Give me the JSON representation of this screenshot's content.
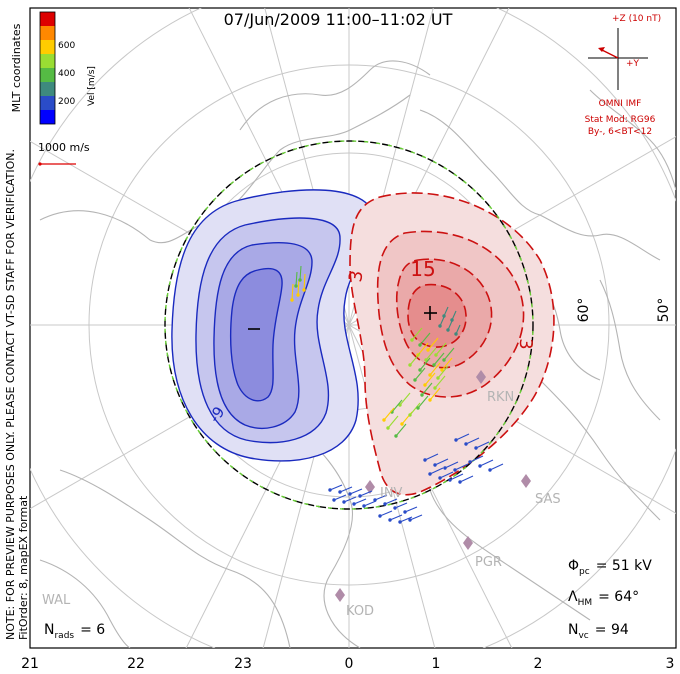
{
  "title": "07/Jun/2009 11:00–11:02 UT",
  "coords_label": "MLT coordinates",
  "colorbar": {
    "label": "Vel [m/s]",
    "ticks": [
      "600",
      "400",
      "200"
    ],
    "colors": [
      "#0000ff",
      "#2a4cc8",
      "#3e8a7e",
      "#55bb44",
      "#99dd33",
      "#ffcc00",
      "#ff8800",
      "#ff3300",
      "#dd0000"
    ]
  },
  "ref_vector": "1000 m/s",
  "imf": {
    "z_label": "+Z (10 nT)",
    "y_label": "+Y",
    "source": "OMNI IMF",
    "model_line1": "Stat Mod: RG96",
    "model_line2": "By-, 6<BT<12"
  },
  "note": "NOTE: FOR PREVIEW PURPOSES ONLY. PLEASE CONTACT VT-SD STAFF FOR VERIFICATION.",
  "fit_order": "FitOrder: 8, mapEX format",
  "lat_labels": [
    "60°",
    "50°"
  ],
  "contour_labels": [
    "15",
    "3",
    "3",
    "-9"
  ],
  "stations": [
    "RKN",
    "INV",
    "SAS",
    "PGR",
    "KOD",
    "WAL"
  ],
  "stats": {
    "phi_pc_label": "Φ",
    "phi_pc_sub": "pc",
    "phi_pc_value": "= 51 kV",
    "lambda_hm_label": "Λ",
    "lambda_hm_sub": "HM",
    "lambda_hm_value": "= 64°",
    "n_vc_label": "N",
    "n_vc_sub": "vc",
    "n_vc_value": "= 94",
    "n_rads_label": "N",
    "n_rads_sub": "rads",
    "n_rads_value": "= 6"
  },
  "mlt_axis": [
    "21",
    "22",
    "23",
    "0",
    "1",
    "2",
    "3"
  ]
}
